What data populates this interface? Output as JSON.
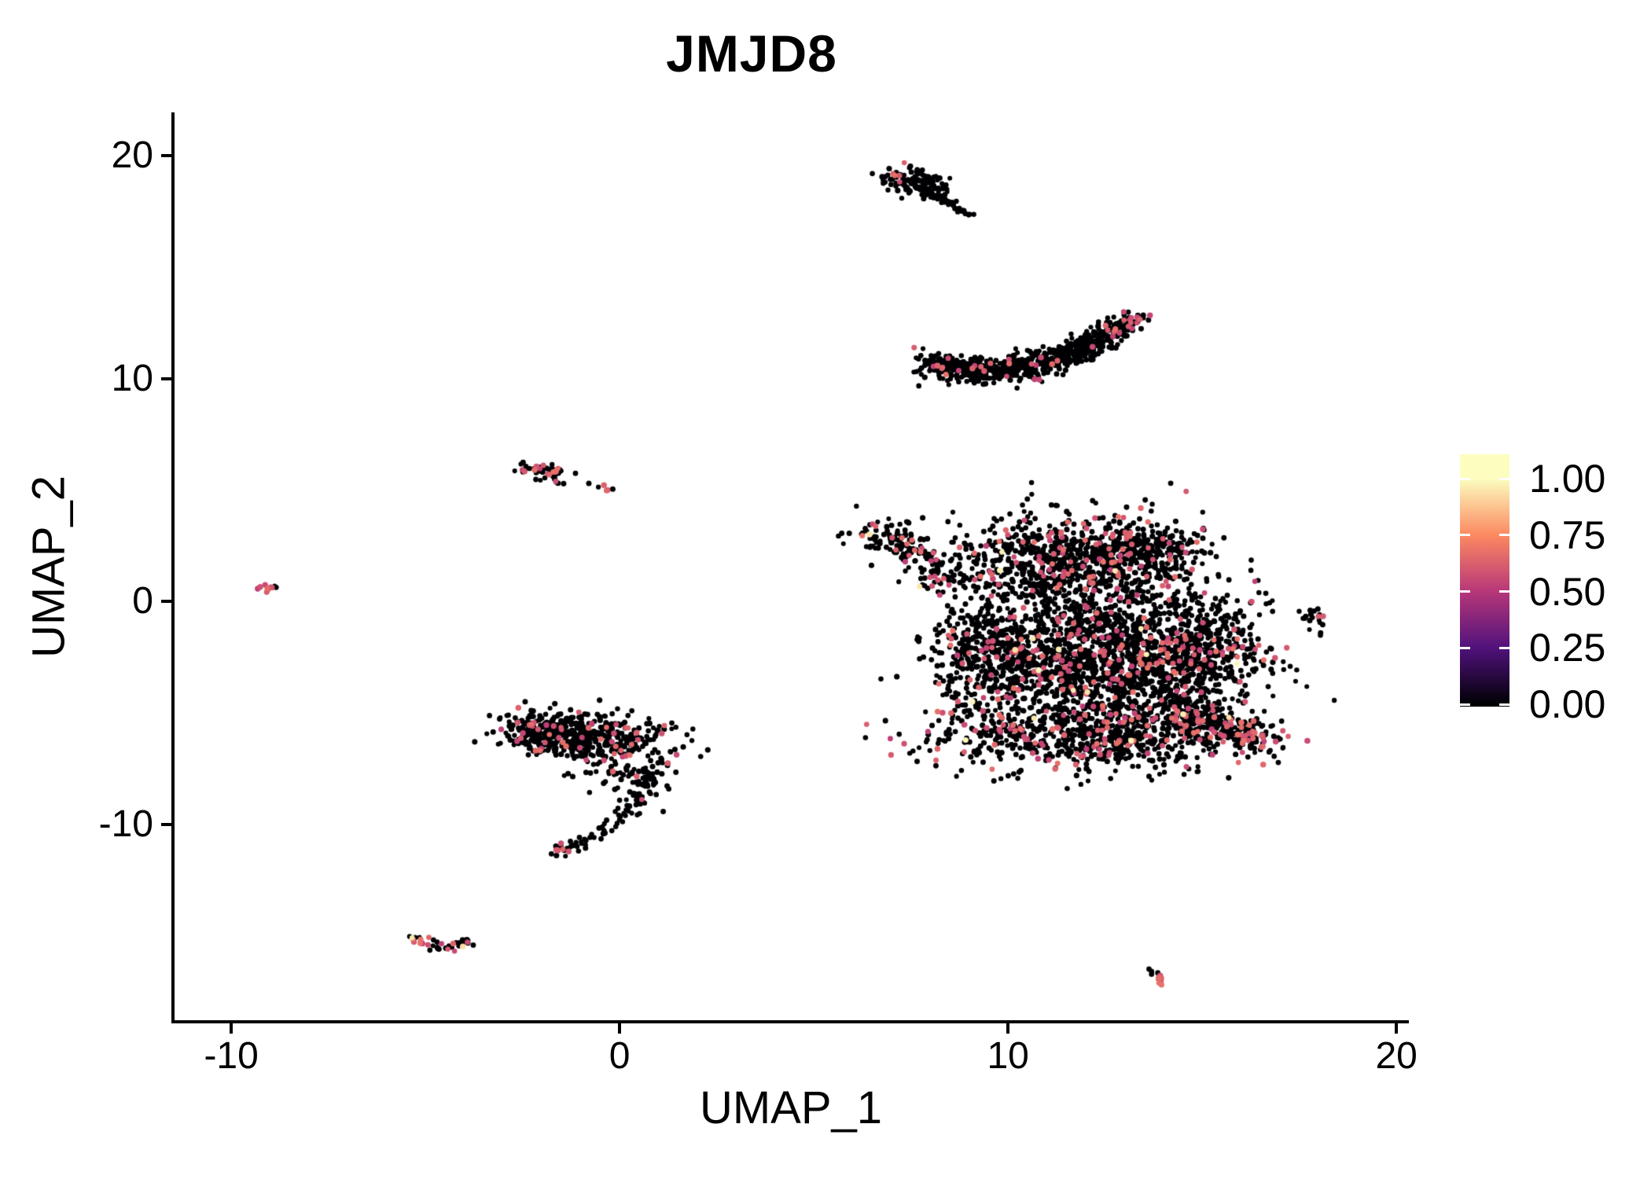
{
  "figure": {
    "background": "#ffffff"
  },
  "chart_data": {
    "type": "scatter",
    "title": "JMJD8",
    "xlabel": "UMAP_1",
    "ylabel": "UMAP_2",
    "grid": "off",
    "legend_position": "right",
    "xlim": [
      -11.46,
      20.28
    ],
    "ylim": [
      -18.87,
      21.94
    ],
    "x_ticks": [
      {
        "v": -10,
        "label": "-10"
      },
      {
        "v": 0,
        "label": "0"
      },
      {
        "v": 10,
        "label": "10"
      },
      {
        "v": 20,
        "label": "20"
      }
    ],
    "y_ticks": [
      {
        "v": 20,
        "label": "20"
      },
      {
        "v": 10,
        "label": "10"
      },
      {
        "v": 0,
        "label": "0"
      },
      {
        "v": -10,
        "label": "-10"
      }
    ],
    "colorbar": {
      "colormap": "magma",
      "value_range": [
        0.0,
        1.0
      ],
      "ticks": [
        {
          "v": 1.0,
          "label": "1.00"
        },
        {
          "v": 0.75,
          "label": "0.75"
        },
        {
          "v": 0.5,
          "label": "0.50"
        },
        {
          "v": 0.25,
          "label": "0.25"
        },
        {
          "v": 0.0,
          "label": "0.00"
        }
      ],
      "stops": [
        [
          0.0,
          "#000004"
        ],
        [
          0.25,
          "#51127c"
        ],
        [
          0.5,
          "#b73779"
        ],
        [
          0.75,
          "#fc8961"
        ],
        [
          1.0,
          "#fcfdbf"
        ]
      ]
    },
    "point_style": {
      "zero_expression_color": "#000004",
      "mid_expression_value_range": [
        0.52,
        0.68
      ],
      "high_expression_value_range": [
        0.93,
        1.0
      ],
      "radius_px": 3.2
    },
    "clusters": [
      {
        "name": "top-blob-head",
        "type": "blob",
        "cx": 7.5,
        "cy": 18.95,
        "sx": 0.36,
        "sy": 0.3,
        "n": 85,
        "red": 0.02
      },
      {
        "name": "top-blob-head2",
        "type": "blob",
        "cx": 7.95,
        "cy": 18.45,
        "sx": 0.28,
        "sy": 0.3,
        "n": 45,
        "red": 0.02
      },
      {
        "name": "top-blob-redtip",
        "type": "blob",
        "cx": 7.12,
        "cy": 19.12,
        "sx": 0.09,
        "sy": 0.07,
        "n": 3,
        "red": 0.9
      },
      {
        "name": "top-blob-tail",
        "type": "path",
        "pts": [
          [
            8.05,
            18.25
          ],
          [
            8.6,
            17.8
          ],
          [
            9.05,
            17.35
          ]
        ],
        "spread": 0.08,
        "n": 38,
        "red": 0
      },
      {
        "name": "crescent",
        "type": "path",
        "pts": [
          [
            7.95,
            10.65
          ],
          [
            10.7,
            9.5
          ],
          [
            13.25,
            12.75
          ]
        ],
        "spread": 0.27,
        "n": 780,
        "red": 0.035,
        "end_red": 0.4,
        "end_start": 0.93
      },
      {
        "name": "crescent-left-red",
        "type": "blob",
        "cx": 8.1,
        "cy": 10.6,
        "sx": 0.07,
        "sy": 0.05,
        "n": 2,
        "red": 1
      },
      {
        "name": "big-arm",
        "type": "path",
        "pts": [
          [
            6.45,
            3.3
          ],
          [
            7.5,
            2.4
          ],
          [
            8.7,
            0.8
          ]
        ],
        "spread": 0.4,
        "n": 170,
        "red": 0.2,
        "yellow": 0.012
      },
      {
        "name": "big-upper",
        "type": "blob",
        "cx": 11.6,
        "cy": 1.7,
        "sx": 1.5,
        "sy": 1.1,
        "n": 850,
        "red": 0.09,
        "yellow": 0.007
      },
      {
        "name": "big-upper-right",
        "type": "blob",
        "cx": 13.5,
        "cy": 2.4,
        "sx": 0.75,
        "sy": 0.55,
        "n": 180,
        "red": 0.12
      },
      {
        "name": "big-midleft",
        "type": "blob",
        "cx": 9.6,
        "cy": -2.4,
        "sx": 0.85,
        "sy": 1.4,
        "n": 430,
        "red": 0.07,
        "yellow": 0.005
      },
      {
        "name": "big-core",
        "type": "blob",
        "cx": 12.6,
        "cy": -2.7,
        "sx": 1.65,
        "sy": 1.6,
        "n": 1600,
        "red": 0.09,
        "yellow": 0.007
      },
      {
        "name": "big-right",
        "type": "blob",
        "cx": 15.0,
        "cy": -2.1,
        "sx": 0.85,
        "sy": 1.1,
        "n": 330,
        "red": 0.1
      },
      {
        "name": "big-bottom",
        "type": "blob",
        "cx": 11.8,
        "cy": -6.1,
        "sx": 2.0,
        "sy": 0.75,
        "n": 640,
        "red": 0.12,
        "yellow": 0.005
      },
      {
        "name": "big-right-tail",
        "type": "path",
        "pts": [
          [
            14.3,
            -4.9
          ],
          [
            15.6,
            -5.6
          ],
          [
            16.75,
            -6.35
          ]
        ],
        "spread": 0.4,
        "n": 270,
        "red": 0.15,
        "end_red": 0.45,
        "end_start": 0.8
      },
      {
        "name": "right-small",
        "type": "path",
        "pts": [
          [
            17.6,
            -0.35
          ],
          [
            18.15,
            -0.8
          ],
          [
            17.95,
            -1.5
          ]
        ],
        "spread": 0.13,
        "n": 16,
        "red": 0.1
      },
      {
        "name": "right-small-red",
        "type": "blob",
        "cx": 18.05,
        "cy": -0.75,
        "sx": 0.06,
        "sy": 0.05,
        "n": 2,
        "red": 1
      },
      {
        "name": "left-tiny",
        "type": "blob",
        "cx": -9.05,
        "cy": 0.55,
        "sx": 0.18,
        "sy": 0.13,
        "n": 11,
        "red": 0.42
      },
      {
        "name": "midleft-strip",
        "type": "path",
        "pts": [
          [
            -2.5,
            5.95
          ],
          [
            -1.95,
            5.9
          ],
          [
            -1.45,
            5.6
          ]
        ],
        "spread": 0.15,
        "n": 55,
        "red": 0.27
      },
      {
        "name": "midleft-dot",
        "type": "blob",
        "cx": -0.75,
        "cy": 5.3,
        "sx": 0.04,
        "sy": 0.04,
        "n": 1,
        "red": 0
      },
      {
        "name": "midleft-sat",
        "type": "path",
        "pts": [
          [
            -0.52,
            5.15
          ],
          [
            -0.22,
            4.97
          ]
        ],
        "spread": 0.06,
        "n": 5,
        "red": 0.35
      },
      {
        "name": "lowerleft-band",
        "type": "blob",
        "cx": -0.7,
        "cy": -6.15,
        "sx": 1.0,
        "sy": 0.55,
        "n": 380,
        "red": 0.12
      },
      {
        "name": "lowerleft-band2",
        "type": "blob",
        "cx": -2.0,
        "cy": -5.85,
        "sx": 0.55,
        "sy": 0.45,
        "n": 170,
        "red": 0.13
      },
      {
        "name": "lowerleft-mid",
        "type": "blob",
        "cx": 0.3,
        "cy": -7.7,
        "sx": 0.7,
        "sy": 0.6,
        "n": 70,
        "red": 0.1
      },
      {
        "name": "lowerleft-hook",
        "type": "path",
        "pts": [
          [
            0.95,
            -6.9
          ],
          [
            0.8,
            -9.7
          ],
          [
            -1.8,
            -11.4
          ]
        ],
        "spread": 0.16,
        "n": 105,
        "red": 0.03,
        "end_red": 0.5,
        "end_start": 0.92
      },
      {
        "name": "bottomleft-v",
        "type": "path",
        "pts": [
          [
            -5.3,
            -15.0
          ],
          [
            -4.62,
            -15.9
          ],
          [
            -3.9,
            -15.2
          ]
        ],
        "spread": 0.12,
        "n": 40,
        "red": 0.35,
        "yellow": 0.05
      },
      {
        "name": "bottomright-speck",
        "type": "path",
        "pts": [
          [
            13.55,
            -16.35
          ],
          [
            14.05,
            -17.15
          ]
        ],
        "spread": 0.07,
        "n": 14,
        "red": 0,
        "end_red": 0.85,
        "end_start": 0.5
      }
    ]
  }
}
